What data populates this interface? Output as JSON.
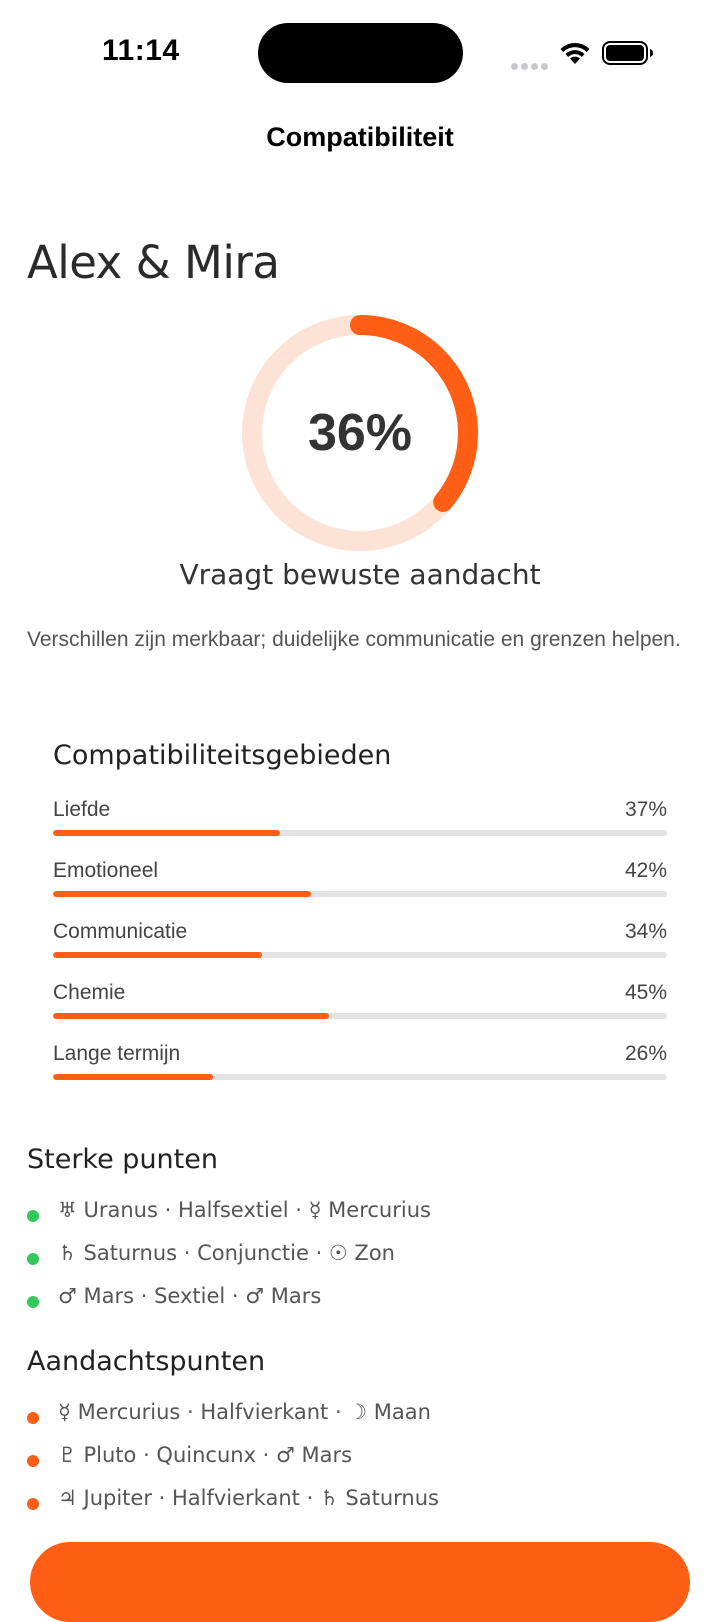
{
  "status_bar": {
    "time": "11:14"
  },
  "nav": {
    "title": "Compatibiliteit"
  },
  "header": {
    "pair_name": "Alex & Mira"
  },
  "score": {
    "value_text": "36%",
    "fraction": 0.36,
    "verdict": "Vraagt bewuste aandacht",
    "summary": "Verschillen zijn merkbaar; duidelijke communicatie en grenzen helpen."
  },
  "areas": {
    "title": "Compatibiliteitsgebieden",
    "items": [
      {
        "label": "Liefde",
        "value_text": "37%",
        "value": 37
      },
      {
        "label": "Emotioneel",
        "value_text": "42%",
        "value": 42
      },
      {
        "label": "Communicatie",
        "value_text": "34%",
        "value": 34
      },
      {
        "label": "Chemie",
        "value_text": "45%",
        "value": 45
      },
      {
        "label": "Lange termijn",
        "value_text": "26%",
        "value": 26
      }
    ]
  },
  "strengths": {
    "title": "Sterke punten",
    "items": [
      "♅ Uranus · Halfsextiel · ☿ Mercurius",
      "♄ Saturnus · Conjunctie · ☉ Zon",
      "♂ Mars · Sextiel · ♂ Mars"
    ]
  },
  "attention": {
    "title": "Aandachtspunten",
    "items": [
      "☿ Mercurius · Halfvierkant · ☽ Maan",
      "♇ Pluto · Quincunx · ♂ Mars",
      "♃ Jupiter · Halfvierkant · ♄ Saturnus"
    ]
  },
  "colors": {
    "accent": "#ff5e14",
    "accent_light": "#fde3d6",
    "positive": "#34c759",
    "track": "#e3e3e3"
  }
}
